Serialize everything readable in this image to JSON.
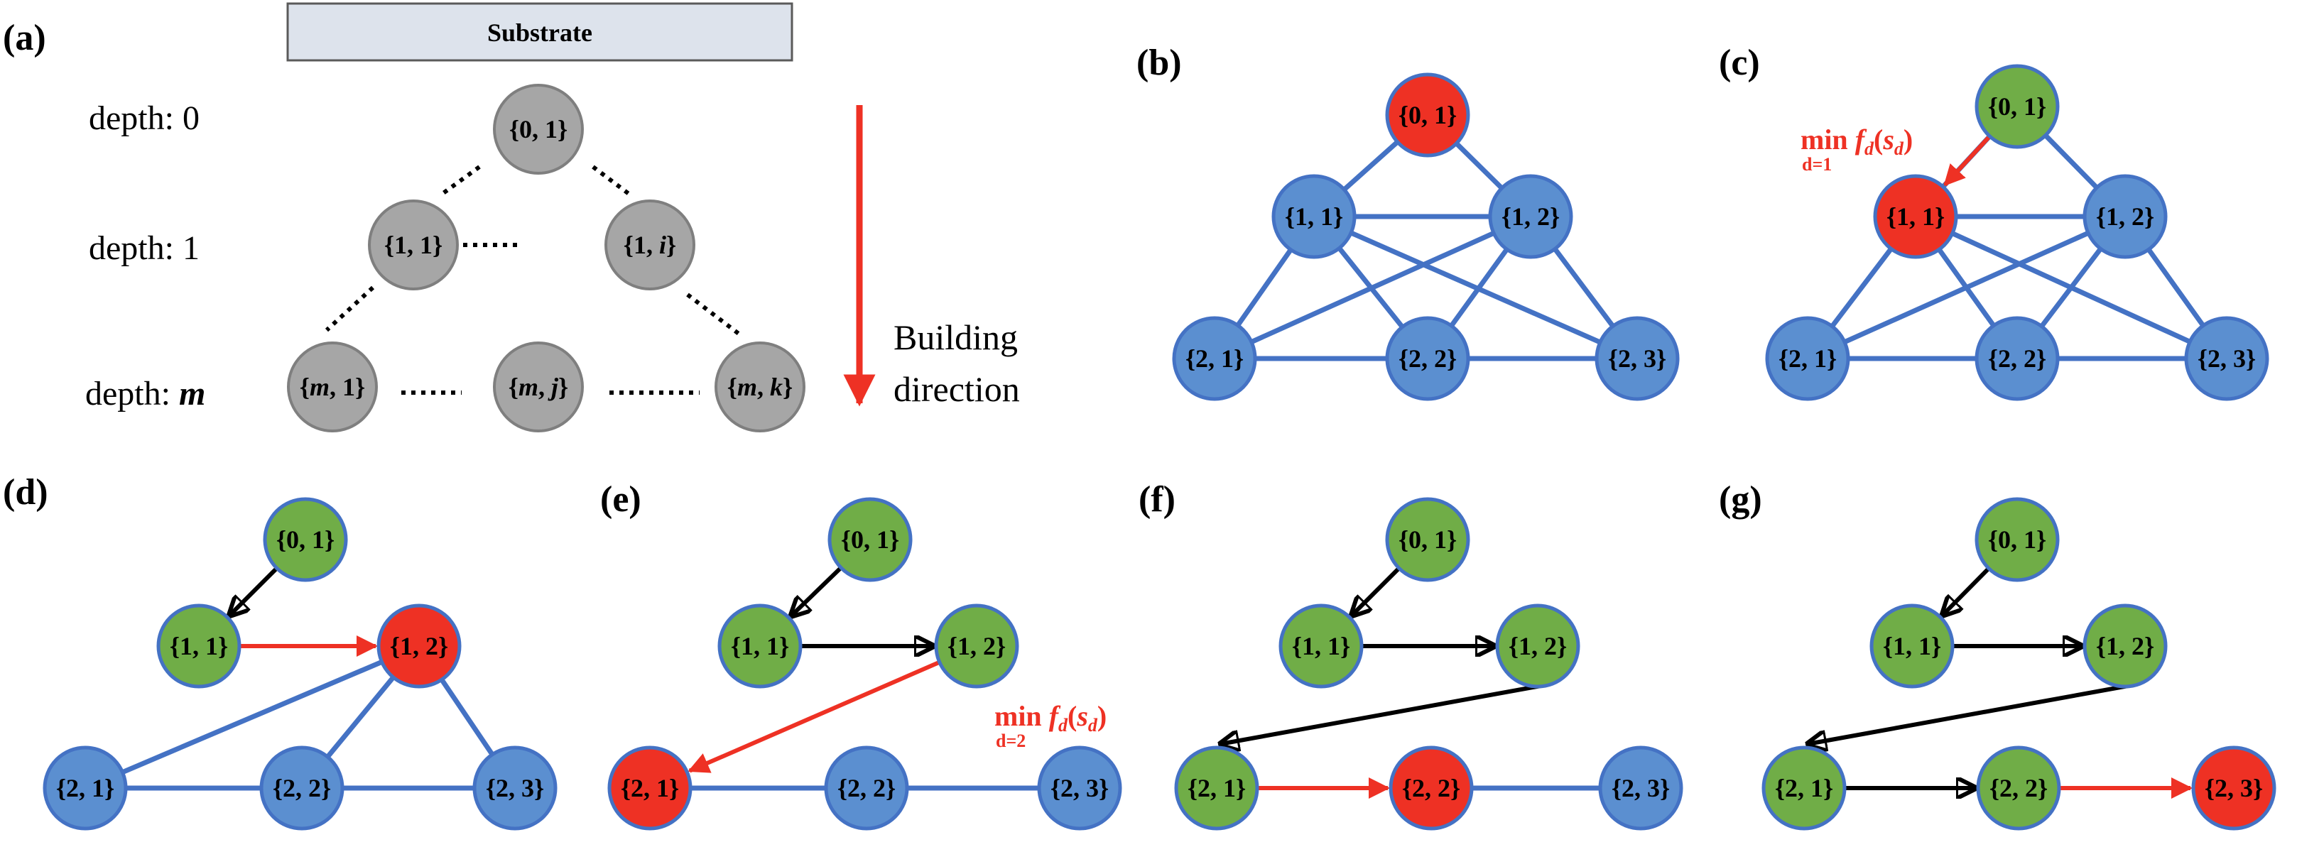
{
  "colors": {
    "gray_fill": "#a6a6a6",
    "gray_stroke": "#7f7f7f",
    "blue_fill": "#5b8fd0",
    "blue_stroke": "#4472c4",
    "green_fill": "#70ad47",
    "red_fill": "#ee3124",
    "edge_blue": "#4472c4",
    "arrow_red": "#ee3124",
    "arrow_black": "#000000",
    "substrate_fill": "#dde3ec"
  },
  "panel_a": {
    "label": "(a)",
    "substrate": "Substrate",
    "depths": [
      {
        "prefix": "depth: ",
        "value": "0"
      },
      {
        "prefix": "depth: ",
        "value": "1"
      },
      {
        "prefix": "depth: ",
        "value": "m"
      }
    ],
    "nodes": [
      {
        "a": "0",
        "b": "1"
      },
      {
        "a": "1",
        "b": "1"
      },
      {
        "a": "1",
        "b": "i"
      },
      {
        "a": "m",
        "b": "1"
      },
      {
        "a": "m",
        "b": "j"
      },
      {
        "a": "m",
        "b": "k"
      }
    ],
    "building_line1": "Building",
    "building_line2": "direction"
  },
  "panel_labels": {
    "b": "(b)",
    "c": "(c)",
    "d": "(d)",
    "e": "(e)",
    "f": "(f)",
    "g": "(g)"
  },
  "node_labels": {
    "n01": "{0, 1}",
    "n11": "{1, 1}",
    "n12": "{1, 2}",
    "n21": "{2, 1}",
    "n22": "{2, 2}",
    "n23": "{2, 3}"
  },
  "annotations": {
    "min_word": "min",
    "f_sym": "f",
    "d_sub": "d",
    "s_sym": "s",
    "d1": "d=1",
    "d2": "d=2"
  },
  "panel_states": {
    "b": {
      "n01": "red",
      "n11": "blue",
      "n12": "blue",
      "n21": "blue",
      "n22": "blue",
      "n23": "blue"
    },
    "c": {
      "n01": "green",
      "n11": "red",
      "n12": "blue",
      "n21": "blue",
      "n22": "blue",
      "n23": "blue"
    },
    "d": {
      "n01": "green",
      "n11": "green",
      "n12": "red",
      "n21": "blue",
      "n22": "blue",
      "n23": "blue"
    },
    "e": {
      "n01": "green",
      "n11": "green",
      "n12": "green",
      "n21": "red",
      "n22": "blue",
      "n23": "blue"
    },
    "f": {
      "n01": "green",
      "n11": "green",
      "n12": "green",
      "n21": "green",
      "n22": "red",
      "n23": "blue"
    },
    "g": {
      "n01": "green",
      "n11": "green",
      "n12": "green",
      "n21": "green",
      "n22": "green",
      "n23": "red"
    }
  }
}
